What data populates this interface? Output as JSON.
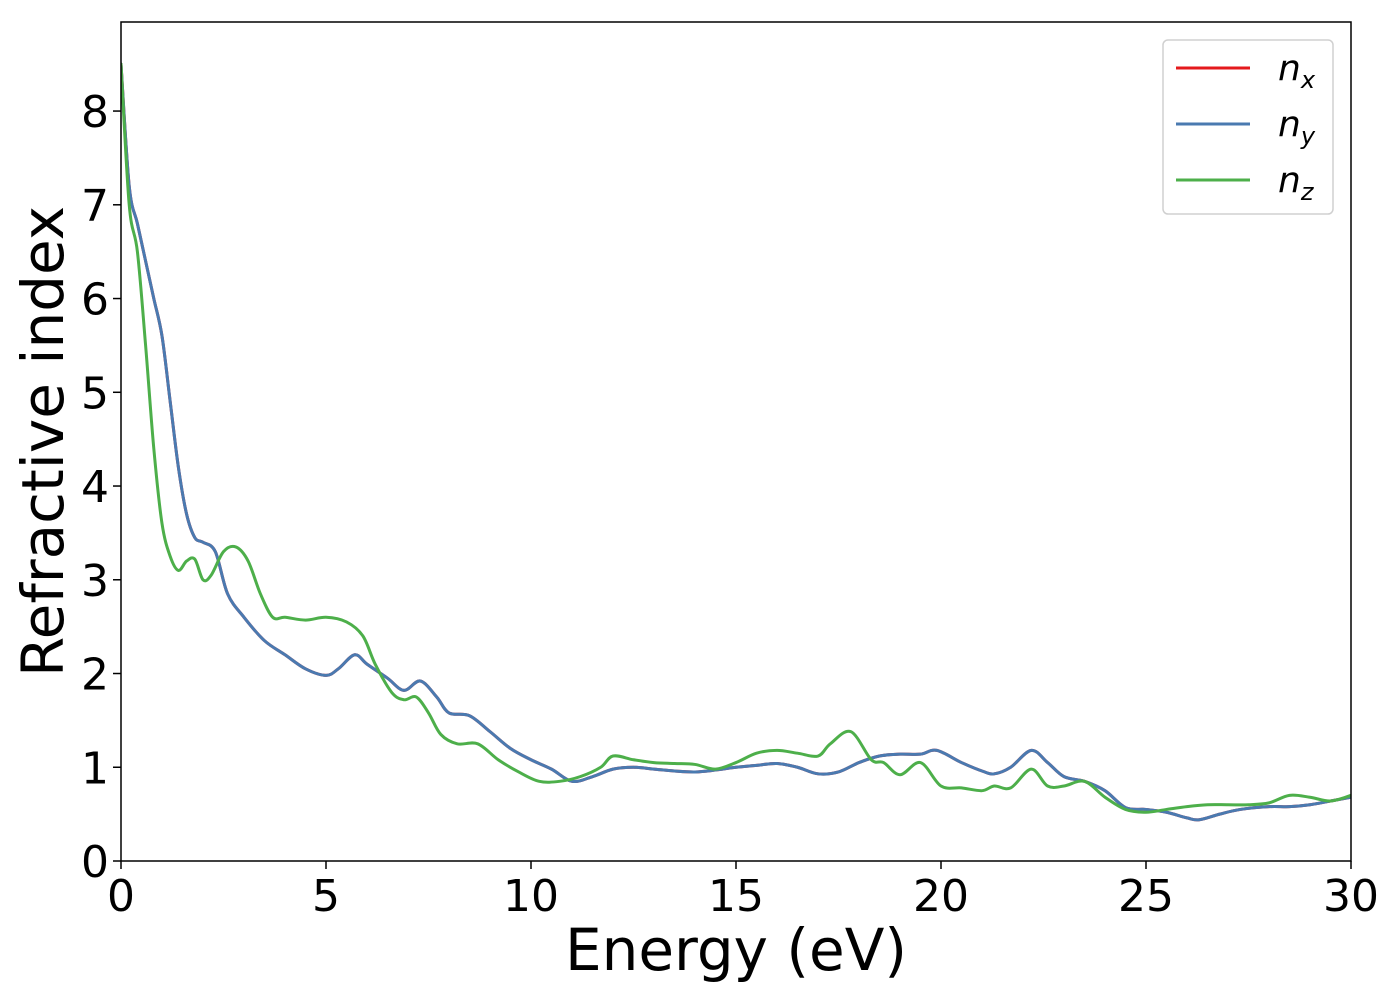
{
  "chart_data": {
    "type": "line",
    "xlabel": "Energy (eV)",
    "ylabel": "Refractive index",
    "xlim": [
      0,
      30
    ],
    "ylim": [
      0,
      8.95
    ],
    "xticks": [
      0,
      5,
      10,
      15,
      20,
      25,
      30
    ],
    "yticks": [
      0,
      1,
      2,
      3,
      4,
      5,
      6,
      7,
      8
    ],
    "grid": false,
    "legend_position": "top-right",
    "series": [
      {
        "name": "n",
        "subscript": "x",
        "color": "#e41a1c",
        "x": [
          0,
          0.2,
          0.4,
          0.6,
          0.8,
          1.0,
          1.2,
          1.4,
          1.6,
          1.8,
          2.0,
          2.3,
          2.6,
          3.0,
          3.5,
          4.0,
          4.5,
          5.0,
          5.3,
          5.7,
          6.0,
          6.5,
          6.9,
          7.3,
          7.7,
          8.0,
          8.5,
          9.0,
          9.5,
          10.0,
          10.5,
          11.0,
          11.5,
          12.0,
          12.5,
          13.0,
          13.5,
          14.0,
          14.5,
          15.0,
          15.5,
          16.0,
          16.5,
          17.0,
          17.5,
          18.0,
          18.5,
          19.0,
          19.5,
          19.9,
          20.5,
          21.0,
          21.3,
          21.7,
          22.2,
          22.6,
          23.0,
          23.5,
          24.0,
          24.5,
          25.0,
          25.5,
          26.0,
          26.3,
          26.8,
          27.3,
          28.0,
          28.5,
          29.0,
          29.5,
          30.0
        ],
        "values": [
          8.5,
          7.2,
          6.8,
          6.4,
          6.0,
          5.6,
          4.9,
          4.2,
          3.7,
          3.45,
          3.4,
          3.3,
          2.85,
          2.6,
          2.35,
          2.2,
          2.05,
          1.98,
          2.05,
          2.2,
          2.1,
          1.95,
          1.82,
          1.92,
          1.75,
          1.58,
          1.55,
          1.38,
          1.2,
          1.08,
          0.98,
          0.85,
          0.9,
          0.98,
          1.0,
          0.98,
          0.96,
          0.95,
          0.97,
          1.0,
          1.02,
          1.04,
          1.0,
          0.93,
          0.95,
          1.05,
          1.12,
          1.14,
          1.14,
          1.18,
          1.05,
          0.96,
          0.93,
          1.0,
          1.18,
          1.05,
          0.9,
          0.85,
          0.75,
          0.57,
          0.55,
          0.52,
          0.46,
          0.44,
          0.5,
          0.55,
          0.58,
          0.58,
          0.6,
          0.64,
          0.68
        ]
      },
      {
        "name": "n",
        "subscript": "y",
        "color": "#4a7ab0",
        "x": [
          0,
          0.2,
          0.4,
          0.6,
          0.8,
          1.0,
          1.2,
          1.4,
          1.6,
          1.8,
          2.0,
          2.3,
          2.6,
          3.0,
          3.5,
          4.0,
          4.5,
          5.0,
          5.3,
          5.7,
          6.0,
          6.5,
          6.9,
          7.3,
          7.7,
          8.0,
          8.5,
          9.0,
          9.5,
          10.0,
          10.5,
          11.0,
          11.5,
          12.0,
          12.5,
          13.0,
          13.5,
          14.0,
          14.5,
          15.0,
          15.5,
          16.0,
          16.5,
          17.0,
          17.5,
          18.0,
          18.5,
          19.0,
          19.5,
          19.9,
          20.5,
          21.0,
          21.3,
          21.7,
          22.2,
          22.6,
          23.0,
          23.5,
          24.0,
          24.5,
          25.0,
          25.5,
          26.0,
          26.3,
          26.8,
          27.3,
          28.0,
          28.5,
          29.0,
          29.5,
          30.0
        ],
        "values": [
          8.5,
          7.2,
          6.8,
          6.4,
          6.0,
          5.6,
          4.9,
          4.2,
          3.7,
          3.45,
          3.4,
          3.3,
          2.85,
          2.6,
          2.35,
          2.2,
          2.05,
          1.98,
          2.05,
          2.2,
          2.1,
          1.95,
          1.82,
          1.92,
          1.75,
          1.58,
          1.55,
          1.38,
          1.2,
          1.08,
          0.98,
          0.85,
          0.9,
          0.98,
          1.0,
          0.98,
          0.96,
          0.95,
          0.97,
          1.0,
          1.02,
          1.04,
          1.0,
          0.93,
          0.95,
          1.05,
          1.12,
          1.14,
          1.14,
          1.18,
          1.05,
          0.96,
          0.93,
          1.0,
          1.18,
          1.05,
          0.9,
          0.85,
          0.75,
          0.57,
          0.55,
          0.52,
          0.46,
          0.44,
          0.5,
          0.55,
          0.58,
          0.58,
          0.6,
          0.64,
          0.68
        ]
      },
      {
        "name": "n",
        "subscript": "z",
        "color": "#4daf4a",
        "x": [
          0,
          0.2,
          0.4,
          0.6,
          0.8,
          1.0,
          1.2,
          1.4,
          1.6,
          1.8,
          2.0,
          2.2,
          2.5,
          2.8,
          3.1,
          3.4,
          3.7,
          4.0,
          4.5,
          5.0,
          5.5,
          5.9,
          6.2,
          6.6,
          6.9,
          7.2,
          7.5,
          7.8,
          8.2,
          8.7,
          9.2,
          9.7,
          10.2,
          10.7,
          11.2,
          11.7,
          12.0,
          12.5,
          13.0,
          13.5,
          14.0,
          14.5,
          15.0,
          15.5,
          16.0,
          16.5,
          17.0,
          17.3,
          17.8,
          18.3,
          18.6,
          19.0,
          19.5,
          20.0,
          20.5,
          21.0,
          21.3,
          21.7,
          22.2,
          22.6,
          23.0,
          23.5,
          24.0,
          24.5,
          25.0,
          25.5,
          26.0,
          26.5,
          27.0,
          27.5,
          28.0,
          28.5,
          29.0,
          29.5,
          30.0
        ],
        "values": [
          8.5,
          7.0,
          6.5,
          5.5,
          4.4,
          3.6,
          3.25,
          3.1,
          3.2,
          3.22,
          3.0,
          3.05,
          3.3,
          3.35,
          3.2,
          2.85,
          2.6,
          2.6,
          2.57,
          2.6,
          2.55,
          2.4,
          2.1,
          1.8,
          1.72,
          1.75,
          1.58,
          1.35,
          1.25,
          1.25,
          1.08,
          0.95,
          0.85,
          0.85,
          0.9,
          1.0,
          1.12,
          1.08,
          1.05,
          1.04,
          1.03,
          0.98,
          1.05,
          1.15,
          1.18,
          1.15,
          1.12,
          1.25,
          1.38,
          1.08,
          1.05,
          0.92,
          1.05,
          0.8,
          0.78,
          0.75,
          0.8,
          0.78,
          0.98,
          0.8,
          0.8,
          0.85,
          0.68,
          0.55,
          0.52,
          0.55,
          0.58,
          0.6,
          0.6,
          0.6,
          0.62,
          0.7,
          0.68,
          0.64,
          0.7
        ]
      }
    ]
  }
}
